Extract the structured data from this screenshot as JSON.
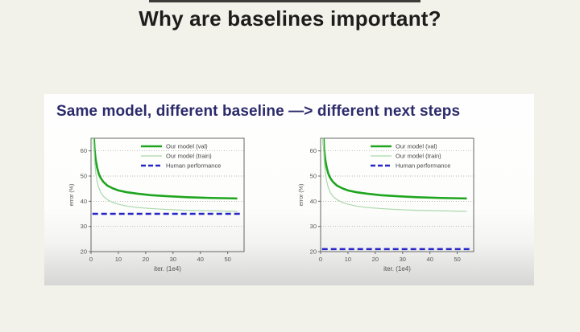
{
  "page": {
    "title": "Why are baselines important?"
  },
  "card": {
    "heading": "Same model, different baseline —> different next steps"
  },
  "colors": {
    "background": "#f2f1ea",
    "card": "#fdfdfc",
    "card_fade": "#d6d6d4",
    "title_text": "#1d1d1b",
    "heading_text": "#2b2a6b",
    "val_green": "#1ea51e",
    "train_green": "#abd8ab",
    "human_blue": "#2525c8",
    "axis": "#666666",
    "grid": "#9a9a9a",
    "tick_text": "#555555"
  },
  "chart_data": [
    {
      "name": "left-chart",
      "type": "line",
      "xlabel": "iter. (1e4)",
      "ylabel": "error (%)",
      "xlim": [
        0,
        56
      ],
      "ylim": [
        20,
        65
      ],
      "xticks": [
        0,
        10,
        20,
        30,
        40,
        50
      ],
      "yticks": [
        20,
        30,
        40,
        50,
        60
      ],
      "gridlines_y": [
        30,
        40,
        50,
        60
      ],
      "legend_position": "upper right",
      "series": [
        {
          "name": "Our model (val)",
          "x": [
            0.9,
            1.3,
            1.7,
            2.2,
            2.8,
            3.5,
            4.5,
            6,
            8,
            10,
            13,
            17,
            22,
            28,
            35,
            44,
            53.5
          ],
          "values": [
            69,
            60.5,
            56.5,
            53.5,
            51,
            49.3,
            47.7,
            46.2,
            45.1,
            44.3,
            43.6,
            43,
            42.4,
            42,
            41.6,
            41.3,
            41.1
          ],
          "color": "#1ea51e",
          "width": 2.6,
          "dash": ""
        },
        {
          "name": "Our model (train)",
          "x": [
            0.9,
            1.3,
            1.7,
            2.2,
            2.8,
            3.5,
            4.5,
            6,
            8,
            10,
            13,
            17,
            22,
            28,
            35,
            44,
            53.5
          ],
          "values": [
            66,
            56.5,
            51.5,
            48,
            45.5,
            43.6,
            42,
            40.6,
            39.5,
            38.8,
            38.1,
            37.5,
            37.1,
            36.7,
            36.4,
            36.2,
            36
          ],
          "color": "#abd8ab",
          "width": 1.2,
          "dash": ""
        },
        {
          "name": "Human performance",
          "x": [
            0.5,
            55
          ],
          "values": [
            35,
            35
          ],
          "color": "#2525c8",
          "width": 2.6,
          "dash": "7,4"
        }
      ]
    },
    {
      "name": "right-chart",
      "type": "line",
      "xlabel": "iter. (1e4)",
      "ylabel": "error (%)",
      "xlim": [
        0,
        56
      ],
      "ylim": [
        20,
        65
      ],
      "xticks": [
        0,
        10,
        20,
        30,
        40,
        50
      ],
      "yticks": [
        20,
        30,
        40,
        50,
        60
      ],
      "gridlines_y": [
        30,
        40,
        50,
        60
      ],
      "legend_position": "upper right",
      "series": [
        {
          "name": "Our model (val)",
          "x": [
            0.9,
            1.3,
            1.7,
            2.2,
            2.8,
            3.5,
            4.5,
            6,
            8,
            10,
            13,
            17,
            22,
            28,
            35,
            44,
            53.5
          ],
          "values": [
            69,
            60.5,
            56.5,
            53.5,
            51,
            49.3,
            47.7,
            46.2,
            45.1,
            44.3,
            43.6,
            43,
            42.4,
            42,
            41.6,
            41.3,
            41.1
          ],
          "color": "#1ea51e",
          "width": 2.6,
          "dash": ""
        },
        {
          "name": "Our model (train)",
          "x": [
            0.9,
            1.3,
            1.7,
            2.2,
            2.8,
            3.5,
            4.5,
            6,
            8,
            10,
            13,
            17,
            22,
            28,
            35,
            44,
            53.5
          ],
          "values": [
            66,
            56.5,
            51.5,
            48,
            45.5,
            43.6,
            42,
            40.6,
            39.5,
            38.8,
            38.1,
            37.5,
            37.1,
            36.7,
            36.4,
            36.2,
            36
          ],
          "color": "#abd8ab",
          "width": 1.2,
          "dash": ""
        },
        {
          "name": "Human performance",
          "x": [
            0.5,
            55
          ],
          "values": [
            21,
            21
          ],
          "color": "#2525c8",
          "width": 2.6,
          "dash": "7,4"
        }
      ]
    }
  ]
}
